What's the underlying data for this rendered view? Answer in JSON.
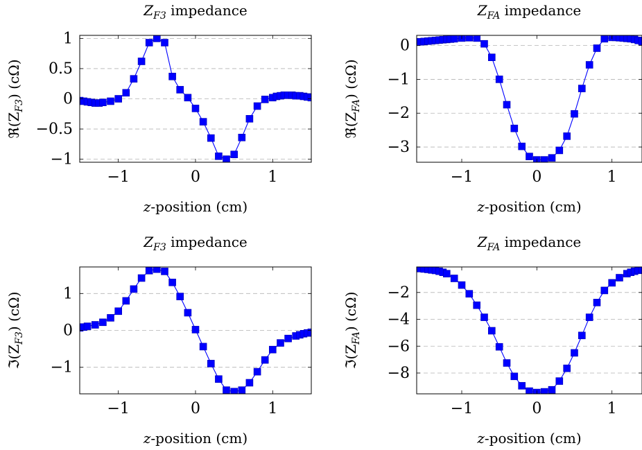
{
  "chart_data": [
    {
      "type": "line",
      "title": "Z_{F3} impedance",
      "title_parts": {
        "base": "Z",
        "sub": "F3",
        "rest": " impedance"
      },
      "xlabel": "z-position (cm)",
      "xlabel_parts": {
        "var": "z",
        "rest": "-position (cm)"
      },
      "ylabel": "ℜ(Z_{F3}) (cΩ)",
      "ylabel_parts": {
        "pre": "ℜ(Z",
        "sub": "F3",
        "post": ") (cΩ)"
      },
      "xlim": [
        -1.5,
        1.5
      ],
      "ylim": [
        -1.05,
        1.05
      ],
      "xticks": [
        -1,
        0,
        1
      ],
      "xtick_labels": [
        "−1",
        "0",
        "1"
      ],
      "yticks": [
        -1,
        -0.5,
        0,
        0.5,
        1
      ],
      "ytick_labels": [
        "−1",
        "−0.5",
        "0",
        "0.5",
        "1"
      ],
      "grid": "horizontal dashed",
      "color": "#0000ff",
      "series": [
        {
          "x": [
            -1.5,
            -1.45,
            -1.4,
            -1.35,
            -1.3,
            -1.25,
            -1.2,
            -1.1,
            -1.0,
            -0.9,
            -0.8,
            -0.7,
            -0.6,
            -0.5,
            -0.4,
            -0.3,
            -0.2,
            -0.1,
            0.0,
            0.1,
            0.2,
            0.3,
            0.4,
            0.5,
            0.6,
            0.7,
            0.8,
            0.9,
            1.0,
            1.05,
            1.1,
            1.15,
            1.2,
            1.25,
            1.3,
            1.35,
            1.4,
            1.45,
            1.5
          ],
          "y": [
            -0.03,
            -0.04,
            -0.05,
            -0.06,
            -0.07,
            -0.07,
            -0.06,
            -0.04,
            0.0,
            0.1,
            0.33,
            0.62,
            0.93,
            1.0,
            0.93,
            0.37,
            0.15,
            0.02,
            -0.16,
            -0.38,
            -0.65,
            -0.95,
            -1.0,
            -0.92,
            -0.64,
            -0.33,
            -0.12,
            -0.01,
            0.02,
            0.04,
            0.05,
            0.06,
            0.06,
            0.06,
            0.05,
            0.05,
            0.04,
            0.03,
            0.02
          ]
        }
      ]
    },
    {
      "type": "line",
      "title": "Z_{FA} impedance",
      "title_parts": {
        "base": "Z",
        "sub": "FA",
        "rest": " impedance"
      },
      "xlabel": "z-position (cm)",
      "xlabel_parts": {
        "var": "z",
        "rest": "-position (cm)"
      },
      "ylabel": "ℜ(Z_{FA}) (cΩ)",
      "ylabel_parts": {
        "pre": "ℜ(Z",
        "sub": "FA",
        "post": ") (cΩ)"
      },
      "xlim": [
        -1.6,
        1.4
      ],
      "ylim": [
        -3.45,
        0.3
      ],
      "xticks": [
        -1,
        0,
        1
      ],
      "xtick_labels": [
        "−1",
        "0",
        "1"
      ],
      "yticks": [
        -3,
        -2,
        -1,
        0
      ],
      "ytick_labels": [
        "−3",
        "−2",
        "−1",
        "0"
      ],
      "grid": "horizontal dashed",
      "color": "#0000ff",
      "series": [
        {
          "x": [
            -1.6,
            -1.55,
            -1.5,
            -1.45,
            -1.4,
            -1.35,
            -1.3,
            -1.25,
            -1.2,
            -1.15,
            -1.1,
            -1.0,
            -0.9,
            -0.8,
            -0.7,
            -0.6,
            -0.5,
            -0.4,
            -0.3,
            -0.2,
            -0.1,
            0.0,
            0.1,
            0.2,
            0.3,
            0.4,
            0.5,
            0.6,
            0.7,
            0.8,
            0.9,
            1.0,
            1.05,
            1.1,
            1.15,
            1.2,
            1.25,
            1.3,
            1.35,
            1.4
          ],
          "y": [
            0.1,
            0.11,
            0.12,
            0.13,
            0.14,
            0.15,
            0.16,
            0.17,
            0.18,
            0.19,
            0.2,
            0.22,
            0.23,
            0.22,
            0.05,
            -0.35,
            -1.0,
            -1.75,
            -2.45,
            -2.98,
            -3.28,
            -3.38,
            -3.38,
            -3.32,
            -3.1,
            -2.68,
            -2.02,
            -1.27,
            -0.57,
            -0.08,
            0.2,
            0.24,
            0.24,
            0.23,
            0.22,
            0.21,
            0.2,
            0.18,
            0.15,
            0.12
          ]
        }
      ]
    },
    {
      "type": "line",
      "title": "Z_{F3} impedance",
      "title_parts": {
        "base": "Z",
        "sub": "F3",
        "rest": " impedance"
      },
      "xlabel": "z-position (cm)",
      "xlabel_parts": {
        "var": "z",
        "rest": "-position (cm)"
      },
      "ylabel": "ℑ(Z_{F3}) (cΩ)",
      "ylabel_parts": {
        "pre": "ℑ(Z",
        "sub": "F3",
        "post": ") (cΩ)"
      },
      "xlim": [
        -1.5,
        1.5
      ],
      "ylim": [
        -1.72,
        1.72
      ],
      "xticks": [
        -1,
        0,
        1
      ],
      "xtick_labels": [
        "−1",
        "0",
        "1"
      ],
      "yticks": [
        -1,
        0,
        1
      ],
      "ytick_labels": [
        "−1",
        "0",
        "1"
      ],
      "grid": "horizontal dashed",
      "color": "#0000ff",
      "series": [
        {
          "x": [
            -1.5,
            -1.45,
            -1.4,
            -1.3,
            -1.2,
            -1.1,
            -1.0,
            -0.9,
            -0.8,
            -0.7,
            -0.6,
            -0.5,
            -0.4,
            -0.3,
            -0.2,
            -0.1,
            0.0,
            0.1,
            0.2,
            0.3,
            0.4,
            0.5,
            0.6,
            0.7,
            0.8,
            0.9,
            1.0,
            1.1,
            1.2,
            1.3,
            1.35,
            1.4,
            1.45,
            1.5
          ],
          "y": [
            0.07,
            0.09,
            0.11,
            0.15,
            0.22,
            0.34,
            0.52,
            0.8,
            1.12,
            1.42,
            1.62,
            1.66,
            1.6,
            1.3,
            0.92,
            0.48,
            0.02,
            -0.44,
            -0.9,
            -1.32,
            -1.62,
            -1.66,
            -1.62,
            -1.42,
            -1.12,
            -0.8,
            -0.52,
            -0.34,
            -0.22,
            -0.15,
            -0.12,
            -0.09,
            -0.07,
            -0.05
          ]
        }
      ]
    },
    {
      "type": "line",
      "title": "Z_{FA} impedance",
      "title_parts": {
        "base": "Z",
        "sub": "FA",
        "rest": " impedance"
      },
      "xlabel": "z-position (cm)",
      "xlabel_parts": {
        "var": "z",
        "rest": "-position (cm)"
      },
      "ylabel": "ℑ(Z_{FA}) (cΩ)",
      "ylabel_parts": {
        "pre": "ℑ(Z",
        "sub": "FA",
        "post": ") (cΩ)"
      },
      "xlim": [
        -1.6,
        1.4
      ],
      "ylim": [
        -9.55,
        -0.1
      ],
      "xticks": [
        -1,
        0,
        1
      ],
      "xtick_labels": [
        "−1",
        "0",
        "1"
      ],
      "yticks": [
        -8,
        -6,
        -4,
        -2
      ],
      "ytick_labels": [
        "−8",
        "−6",
        "−4",
        "−2"
      ],
      "grid": "horizontal dashed",
      "color": "#0000ff",
      "series": [
        {
          "x": [
            -1.6,
            -1.55,
            -1.5,
            -1.45,
            -1.4,
            -1.35,
            -1.3,
            -1.25,
            -1.2,
            -1.1,
            -1.0,
            -0.9,
            -0.8,
            -0.7,
            -0.6,
            -0.5,
            -0.4,
            -0.3,
            -0.2,
            -0.1,
            0.0,
            0.1,
            0.2,
            0.3,
            0.4,
            0.5,
            0.6,
            0.7,
            0.8,
            0.9,
            1.0,
            1.1,
            1.2,
            1.25,
            1.3,
            1.35,
            1.4
          ],
          "y": [
            -0.2,
            -0.22,
            -0.25,
            -0.28,
            -0.32,
            -0.36,
            -0.42,
            -0.5,
            -0.6,
            -0.95,
            -1.45,
            -2.1,
            -2.95,
            -3.85,
            -4.85,
            -6.05,
            -7.25,
            -8.25,
            -8.95,
            -9.35,
            -9.45,
            -9.4,
            -9.25,
            -8.6,
            -7.65,
            -6.5,
            -5.2,
            -3.85,
            -2.75,
            -1.85,
            -1.28,
            -0.9,
            -0.6,
            -0.5,
            -0.42,
            -0.35,
            -0.3
          ]
        }
      ]
    }
  ]
}
